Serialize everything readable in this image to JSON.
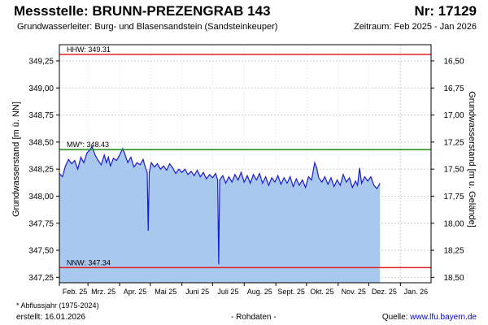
{
  "header": {
    "title": "Messstelle: BRUNN-PREZENGRAB 143",
    "number": "Nr: 17129",
    "aquifer": "Grundwasserleiter:  Burg- und Blasensandstein (Sandsteinkeuper)",
    "period": "Zeitraum: Feb 2025 - Jan 2026"
  },
  "footer": {
    "footnote": "* Abflussjahr (1975-2024)",
    "created": "erstellt:  16.01.2026",
    "rawdata": "- Rohdaten -",
    "source_label": "Quelle: ",
    "source_url": "www.lfu.bayern.de"
  },
  "colors": {
    "fill": "#a8c8ee",
    "line": "#1a1ad6",
    "hhw": "#e02020",
    "mw": "#109010",
    "nnw": "#e02020",
    "grid": "#cfcfcf"
  },
  "chart_data": {
    "type": "area",
    "ylabel": "Grundwasserstand [m ü. NN]",
    "ylabel_right": "Grundwasserstand [m u. Gelände]",
    "ylim": [
      347.2,
      349.4
    ],
    "y_ticks": [
      "349,25",
      "349,00",
      "348,75",
      "348,50",
      "348,25",
      "348,00",
      "347,75",
      "347,50",
      "347,25"
    ],
    "y_tick_values": [
      349.25,
      349.0,
      348.75,
      348.5,
      348.25,
      348.0,
      347.75,
      347.5,
      347.25
    ],
    "y2_ticks": [
      "16,50",
      "16,75",
      "17,00",
      "17,25",
      "17,50",
      "17,75",
      "18,00",
      "18,25",
      "18,50"
    ],
    "y2_tick_values": [
      349.25,
      349.0,
      348.75,
      348.5,
      348.25,
      348.0,
      347.75,
      347.5,
      347.25
    ],
    "x_ticks": [
      "Feb. 25",
      "Mrz. 25",
      "Apr. 25",
      "Mai 25",
      "Juni 25",
      "Juli 25",
      "Aug. 25",
      "Sept. 25",
      "Okt. 25",
      "Nov. 25",
      "Dez. 25",
      "Jan. 26"
    ],
    "x_range_days": [
      0,
      364
    ],
    "x_tick_days": [
      0,
      28,
      59,
      89,
      120,
      150,
      181,
      212,
      242,
      273,
      303,
      334
    ],
    "reference_lines": [
      {
        "label": "HHW: 349.31",
        "value": 349.31
      },
      {
        "label": "MW*: 348.43",
        "value": 348.43
      },
      {
        "label": "NNW: 347.34",
        "value": 347.34
      }
    ],
    "series": [
      {
        "points": [
          [
            0,
            348.21
          ],
          [
            3,
            348.18
          ],
          [
            6,
            348.28
          ],
          [
            9,
            348.34
          ],
          [
            12,
            348.3
          ],
          [
            15,
            348.33
          ],
          [
            18,
            348.25
          ],
          [
            21,
            348.36
          ],
          [
            24,
            348.31
          ],
          [
            27,
            348.4
          ],
          [
            30,
            348.43
          ],
          [
            32,
            348.46
          ],
          [
            35,
            348.38
          ],
          [
            38,
            348.33
          ],
          [
            41,
            348.29
          ],
          [
            44,
            348.38
          ],
          [
            46,
            348.31
          ],
          [
            48,
            348.36
          ],
          [
            50,
            348.28
          ],
          [
            53,
            348.35
          ],
          [
            56,
            348.33
          ],
          [
            59,
            348.38
          ],
          [
            62,
            348.44
          ],
          [
            64,
            348.39
          ],
          [
            67,
            348.31
          ],
          [
            70,
            348.36
          ],
          [
            73,
            348.27
          ],
          [
            76,
            348.31
          ],
          [
            79,
            348.29
          ],
          [
            82,
            348.34
          ],
          [
            84,
            348.27
          ],
          [
            86,
            348.22
          ],
          [
            87,
            347.68
          ],
          [
            88,
            348.22
          ],
          [
            90,
            348.31
          ],
          [
            93,
            348.27
          ],
          [
            96,
            348.3
          ],
          [
            99,
            348.25
          ],
          [
            102,
            348.28
          ],
          [
            105,
            348.24
          ],
          [
            108,
            348.3
          ],
          [
            111,
            348.26
          ],
          [
            114,
            348.21
          ],
          [
            117,
            348.25
          ],
          [
            120,
            348.22
          ],
          [
            123,
            348.25
          ],
          [
            126,
            348.2
          ],
          [
            129,
            348.23
          ],
          [
            132,
            348.19
          ],
          [
            135,
            348.24
          ],
          [
            138,
            348.18
          ],
          [
            141,
            348.22
          ],
          [
            144,
            348.16
          ],
          [
            147,
            348.2
          ],
          [
            150,
            348.17
          ],
          [
            153,
            348.21
          ],
          [
            155,
            348.15
          ],
          [
            156,
            347.37
          ],
          [
            157,
            348.15
          ],
          [
            160,
            348.19
          ],
          [
            163,
            348.12
          ],
          [
            166,
            348.18
          ],
          [
            169,
            348.13
          ],
          [
            172,
            348.2
          ],
          [
            175,
            348.15
          ],
          [
            178,
            348.22
          ],
          [
            181,
            348.13
          ],
          [
            184,
            348.19
          ],
          [
            187,
            348.12
          ],
          [
            190,
            348.2
          ],
          [
            193,
            348.15
          ],
          [
            196,
            348.21
          ],
          [
            199,
            348.12
          ],
          [
            202,
            348.18
          ],
          [
            205,
            348.1
          ],
          [
            208,
            348.17
          ],
          [
            211,
            348.13
          ],
          [
            214,
            348.19
          ],
          [
            217,
            348.11
          ],
          [
            220,
            348.17
          ],
          [
            223,
            348.12
          ],
          [
            226,
            348.18
          ],
          [
            229,
            348.09
          ],
          [
            232,
            348.16
          ],
          [
            235,
            348.1
          ],
          [
            238,
            348.15
          ],
          [
            241,
            348.08
          ],
          [
            244,
            348.18
          ],
          [
            247,
            348.15
          ],
          [
            250,
            348.31
          ],
          [
            252,
            348.26
          ],
          [
            254,
            348.17
          ],
          [
            257,
            348.13
          ],
          [
            260,
            348.18
          ],
          [
            263,
            348.11
          ],
          [
            266,
            348.17
          ],
          [
            269,
            348.09
          ],
          [
            272,
            348.15
          ],
          [
            275,
            348.1
          ],
          [
            278,
            348.2
          ],
          [
            281,
            348.13
          ],
          [
            284,
            348.17
          ],
          [
            287,
            348.08
          ],
          [
            290,
            348.14
          ],
          [
            292,
            348.1
          ],
          [
            294,
            348.26
          ],
          [
            296,
            348.12
          ],
          [
            299,
            348.18
          ],
          [
            302,
            348.14
          ],
          [
            305,
            348.18
          ],
          [
            308,
            348.1
          ],
          [
            311,
            348.07
          ],
          [
            314,
            348.12
          ]
        ]
      }
    ]
  }
}
